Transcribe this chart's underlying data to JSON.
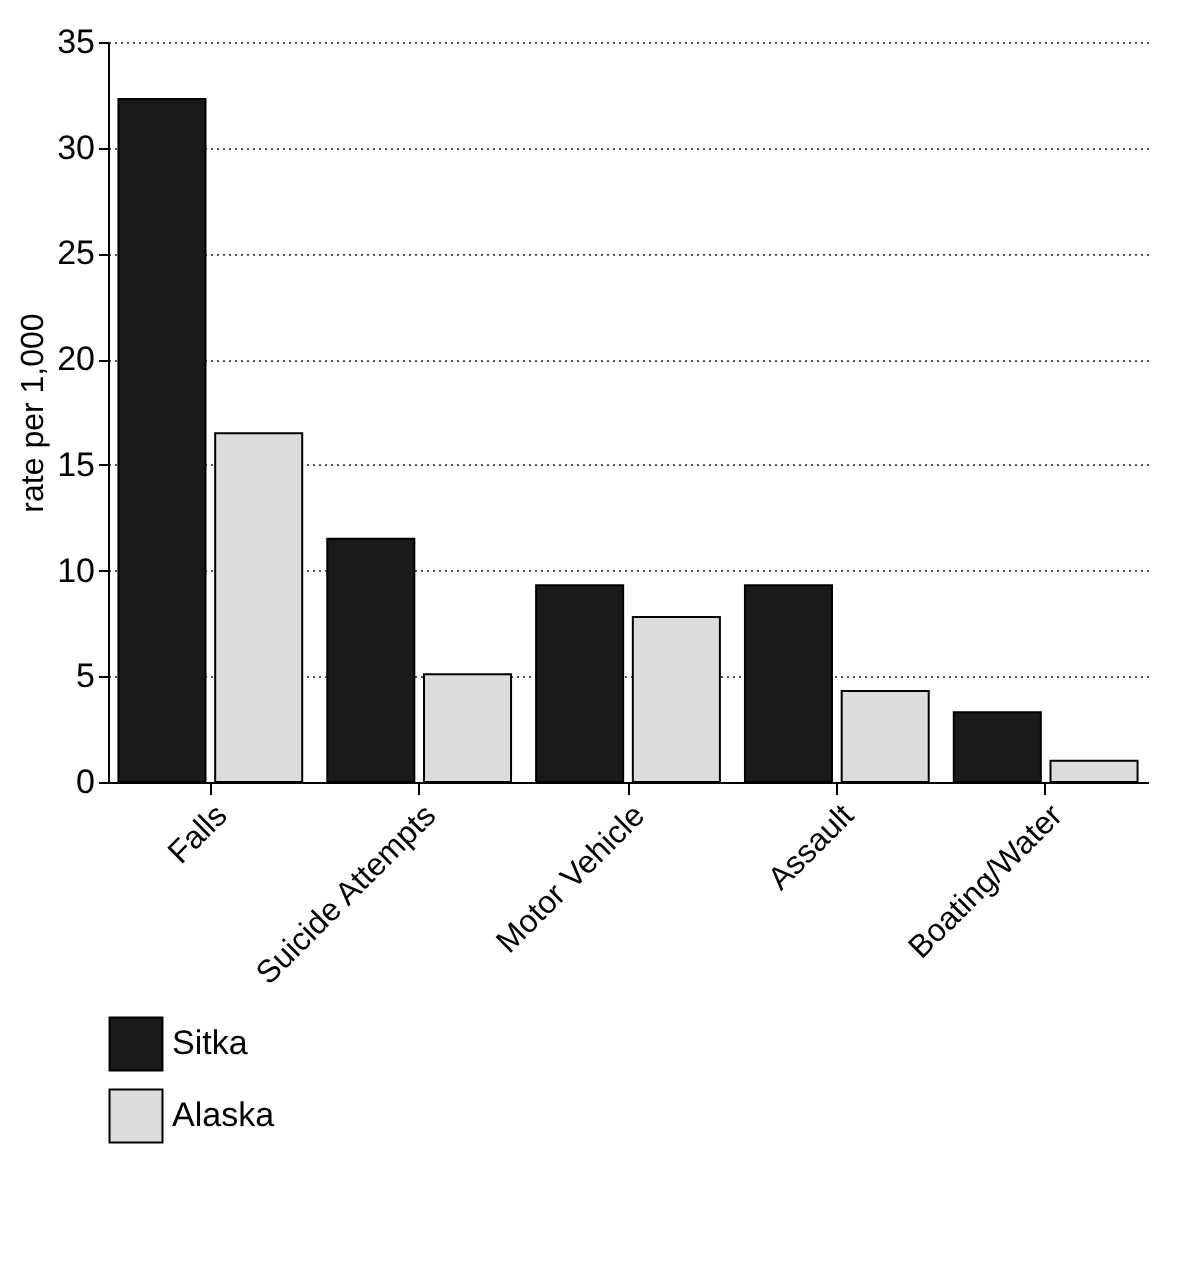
{
  "chart_data": {
    "type": "bar",
    "ylabel": "rate per 1,000",
    "categories": [
      "Falls",
      "Suicide Attempts",
      "Motor Vehicle",
      "Assault",
      "Boating/Water"
    ],
    "series": [
      {
        "name": "Sitka",
        "color": "#1a1a1a",
        "values": [
          32.3,
          11.5,
          9.3,
          9.3,
          3.3
        ]
      },
      {
        "name": "Alaska",
        "color": "#dcdcdc",
        "values": [
          16.5,
          5.1,
          7.8,
          4.3,
          1.0
        ]
      }
    ],
    "ylim": [
      0,
      35
    ],
    "yticks": [
      0,
      5,
      10,
      15,
      20,
      25,
      30,
      35
    ],
    "grid": "y",
    "line_style": "dotted",
    "legend": "bottom"
  }
}
